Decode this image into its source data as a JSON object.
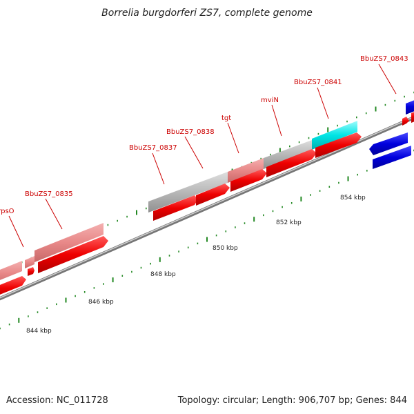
{
  "title": "Borrelia burgdorferi ZS7, complete genome",
  "gene_labels": [
    "BbuZS7_0843",
    "BbuZS7_0841",
    "mviN",
    "tgt",
    "BbuZS7_0838",
    "BbuZS7_0837",
    "BbuZS7_0835",
    "rpsO"
  ],
  "scale_labels": [
    "854 kbp",
    "852 kbp",
    "850 kbp",
    "848 kbp",
    "846 kbp",
    "844 kbp"
  ],
  "footer": {
    "accession": "Accession: NC_011728",
    "topology": "Topology: circular; Length: 906,707 bp; Genes: 844"
  },
  "colors": {
    "forward_cds": "#ee0000",
    "reverse_cds": "#0000dd",
    "gene_light_red": "#e88888",
    "gene_gray": "#b8b8b8",
    "gene_cyan": "#00e5e5",
    "tick": "#228822",
    "backbone": "#888888",
    "label": "#cc0000"
  }
}
